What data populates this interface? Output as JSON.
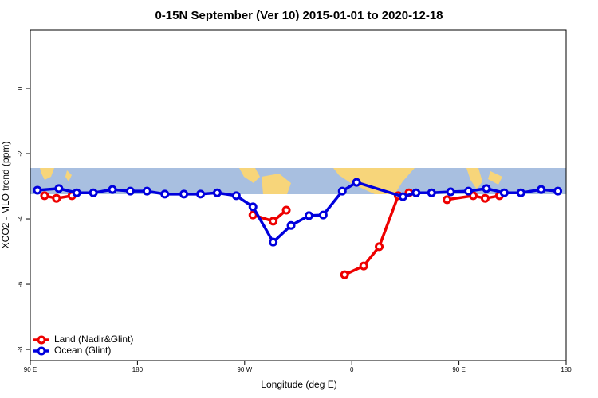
{
  "chart_data": {
    "type": "line",
    "title": "0-15N September (Ver 10)   2015-01-01 to 2020-12-18",
    "xlabel": "Longitude (deg E)",
    "ylabel": "XCO2 - MLO trend (ppm)",
    "xlim": [
      90,
      540
    ],
    "xticks": [
      {
        "value": 90,
        "label": "90 E"
      },
      {
        "value": 180,
        "label": "180"
      },
      {
        "value": 270,
        "label": "90 W"
      },
      {
        "value": 360,
        "label": "0"
      },
      {
        "value": 450,
        "label": "90 E"
      },
      {
        "value": 540,
        "label": "180"
      }
    ],
    "ylim": [
      -8.34,
      1.78
    ],
    "yticks": [
      0,
      -2,
      -4,
      -6,
      -8
    ],
    "legend": "bottom-left",
    "series": [
      {
        "name": "Land (Nadir&Glint)",
        "color": "#ee0000",
        "x": [
          102,
          112,
          125,
          null,
          277,
          294,
          305,
          null,
          354,
          370,
          383,
          399,
          408,
          null,
          440,
          462,
          472,
          484
        ],
        "values": [
          -3.29,
          -3.37,
          -3.29,
          null,
          -3.88,
          -4.07,
          -3.73,
          null,
          -5.71,
          -5.44,
          -4.85,
          -3.29,
          -3.2,
          null,
          -3.41,
          -3.29,
          -3.37,
          -3.29
        ]
      },
      {
        "name": "Ocean (Glint)",
        "color": "#0000dd",
        "x": [
          96,
          114,
          129,
          143,
          159,
          174,
          188,
          203,
          219,
          233,
          247,
          263,
          277,
          294,
          309,
          324,
          336,
          352,
          364,
          403,
          414,
          427,
          443,
          458,
          473,
          488,
          502,
          519,
          533
        ],
        "values": [
          -3.12,
          -3.07,
          -3.2,
          -3.2,
          -3.1,
          -3.15,
          -3.15,
          -3.24,
          -3.24,
          -3.24,
          -3.2,
          -3.29,
          -3.63,
          -4.71,
          -4.2,
          -3.9,
          -3.88,
          -3.15,
          -2.88,
          -3.32,
          -3.2,
          -3.2,
          -3.17,
          -3.15,
          -3.07,
          -3.2,
          -3.2,
          -3.1,
          -3.15
        ]
      }
    ]
  }
}
